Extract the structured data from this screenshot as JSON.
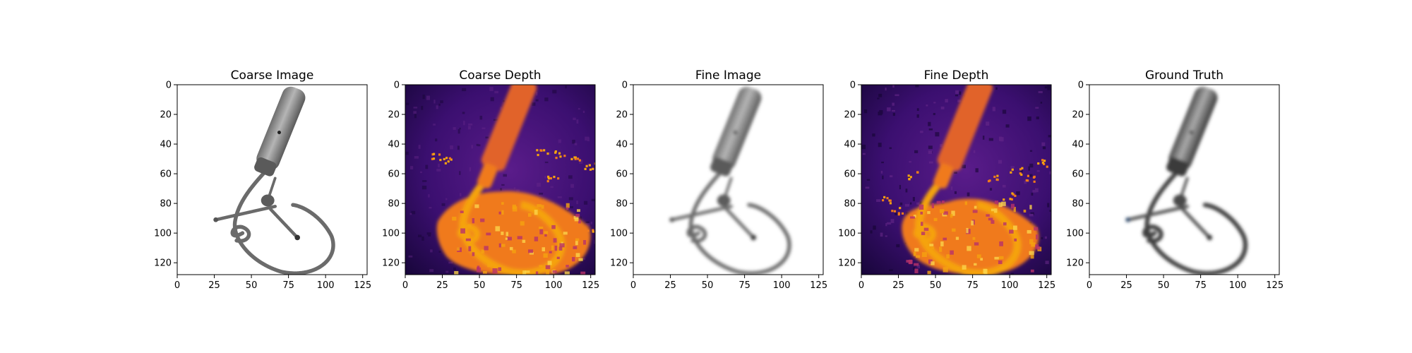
{
  "chart_data": [
    {
      "type": "image",
      "title": "Coarse Image",
      "style": "rgb",
      "xticks": [
        0,
        25,
        50,
        75,
        100,
        125
      ],
      "yticks": [
        0,
        20,
        40,
        60,
        80,
        100,
        120
      ],
      "xlim": [
        0,
        128
      ],
      "ylim": [
        128,
        0
      ]
    },
    {
      "type": "heatmap",
      "title": "Coarse Depth",
      "style": "depth",
      "colormap": "inferno",
      "xticks": [
        0,
        25,
        50,
        75,
        100,
        125
      ],
      "yticks": [
        0,
        20,
        40,
        60,
        80,
        100,
        120
      ],
      "xlim": [
        0,
        128
      ],
      "ylim": [
        128,
        0
      ]
    },
    {
      "type": "image",
      "title": "Fine Image",
      "style": "rgb",
      "xticks": [
        0,
        25,
        50,
        75,
        100,
        125
      ],
      "yticks": [
        0,
        20,
        40,
        60,
        80,
        100,
        120
      ],
      "xlim": [
        0,
        128
      ],
      "ylim": [
        128,
        0
      ]
    },
    {
      "type": "heatmap",
      "title": "Fine Depth",
      "style": "depth",
      "colormap": "inferno",
      "xticks": [
        0,
        25,
        50,
        75,
        100,
        125
      ],
      "yticks": [
        0,
        20,
        40,
        60,
        80,
        100,
        120
      ],
      "xlim": [
        0,
        128
      ],
      "ylim": [
        128,
        0
      ]
    },
    {
      "type": "image",
      "title": "Ground Truth",
      "style": "rgb",
      "xticks": [
        0,
        25,
        50,
        75,
        100,
        125
      ],
      "yticks": [
        0,
        20,
        40,
        60,
        80,
        100,
        120
      ],
      "xlim": [
        0,
        128
      ],
      "ylim": [
        128,
        0
      ]
    }
  ],
  "colors": {
    "depth_background": "#2a0b5e",
    "depth_object_near": "#f5a30f",
    "depth_object_mid": "#f07a1a",
    "depth_object_far": "#e1642a",
    "microphone_body": "#8c8c8c",
    "microphone_dark": "#4a4a4a",
    "cable": "#555555",
    "axes": "#000000"
  }
}
